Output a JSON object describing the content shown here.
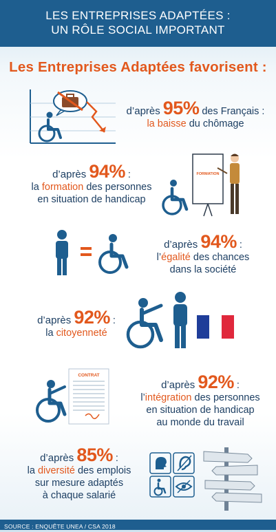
{
  "header": {
    "line1": "LES ENTREPRISES ADAPTÉES :",
    "line2": "UN RÔLE SOCIAL IMPORTANT"
  },
  "headline": "Les Entreprises Adaptées favorisent :",
  "items": [
    {
      "prefix": "d’après",
      "percent": "95%",
      "suffix": "des Français :",
      "highlight": "la baisse",
      "rest": "du chômage",
      "icon": "wheelchair-chart-icon"
    },
    {
      "prefix": "d’après",
      "percent": "94%",
      "suffix": ":",
      "line2_pre": "la",
      "highlight": "formation",
      "rest": "des personnes",
      "line3": "en situation de handicap",
      "board_label": "FORMATION",
      "icon": "trainer-icon"
    },
    {
      "prefix": "d’après",
      "percent": "94%",
      "suffix": ":",
      "line2_pre": "l’",
      "highlight": "égalité",
      "rest": "des chances",
      "line3": "dans la société",
      "icon": "equality-icon"
    },
    {
      "prefix": "d’après",
      "percent": "92%",
      "suffix": ":",
      "line2_pre": "la",
      "highlight": "citoyenneté",
      "icon": "citizenship-icon"
    },
    {
      "prefix": "d’après",
      "percent": "92%",
      "suffix": ":",
      "line2_pre": "l’",
      "highlight": "intégration",
      "rest": "des personnes",
      "line3": "en situation de handicap",
      "line4": "au monde du travail",
      "contract_label": "CONTRAT",
      "icon": "contract-icon"
    },
    {
      "prefix": "d’après",
      "percent": "85%",
      "suffix": ":",
      "line2_pre": "la",
      "highlight": "diversité",
      "rest": "des emplois",
      "line3": "sur mesure adaptés",
      "line4": "à chaque salarié",
      "icon": "disability-types-icon"
    }
  ],
  "footer": "SOURCE : ENQUÊTE UNEA / CSA 2018",
  "colors": {
    "primary_blue": "#1e5e8f",
    "accent_orange": "#e2581d",
    "text_navy": "#1d3f63",
    "flag_blue": "#1f3d99",
    "flag_red": "#e0283c"
  }
}
